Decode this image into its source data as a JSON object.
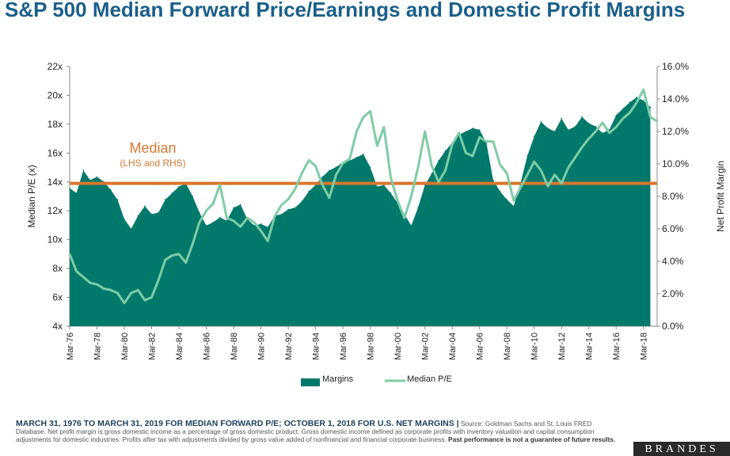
{
  "title": "S&P 500 Median Forward Price/Earnings and Domestic Profit Margins",
  "footer": {
    "lead": "MARCH 31, 1976 TO MARCH 31, 2019 FOR MEDIAN FORWARD P/E; OCTOBER 1, 2018 FOR U.S. NET MARGINS |",
    "source": " Source: Goldman Sachs and St. Louis FRED Database. Net profit margin is gross domestic income as a percentage of gross domestic product. Gross domestic income defined as corporate profits with inventory valuation and capital consumption adjustments for domestic industries: Profits after tax with adjustments divided by gross value added of nonfinancial and financial corporate business. ",
    "disclaimer": "Past performance is not a guarantee of future results."
  },
  "brand": "BRANDES",
  "colors": {
    "margins": "#00796b",
    "pe": "#7fcca5",
    "median": "#d9772f",
    "title": "#1a5f8a"
  },
  "chart_data": {
    "type": "area",
    "y_left": {
      "label": "Median P/E (x)",
      "ylim": [
        4,
        22
      ],
      "ticks": [
        "4x",
        "6x",
        "8x",
        "10x",
        "12x",
        "14x",
        "16x",
        "18x",
        "20x",
        "22x"
      ]
    },
    "y_right": {
      "label": "Net Profit Margin",
      "ylim": [
        0,
        16
      ],
      "ticks": [
        "0.0%",
        "2.0%",
        "4.0%",
        "6.0%",
        "8.0%",
        "10.0%",
        "12.0%",
        "14.0%",
        "16.0%"
      ]
    },
    "x_ticks": [
      "Mar-76",
      "Mar-78",
      "Mar-80",
      "Mar-82",
      "Mar-84",
      "Mar-86",
      "Mar-88",
      "Mar-90",
      "Mar-92",
      "Mar-94",
      "Mar-96",
      "Mar-98",
      "Mar-00",
      "Mar-02",
      "Mar-04",
      "Mar-06",
      "Mar-08",
      "Mar-10",
      "Mar-12",
      "Mar-14",
      "Mar-16",
      "Mar-18"
    ],
    "annotation": {
      "text": "Median",
      "subtext": "(LHS and RHS)",
      "value": 13.9
    },
    "legend": [
      "Margins",
      "Median P/E"
    ],
    "series": [
      {
        "name": "Median P/E",
        "axis": "left",
        "x": [
          1976.25,
          1976.75,
          1977.25,
          1977.75,
          1978.25,
          1978.75,
          1979.25,
          1979.75,
          1980.25,
          1980.75,
          1981.25,
          1981.75,
          1982.25,
          1982.75,
          1983.25,
          1983.75,
          1984.25,
          1984.75,
          1985.25,
          1985.75,
          1986.25,
          1986.75,
          1987.25,
          1987.75,
          1988.25,
          1988.75,
          1989.25,
          1989.75,
          1990.25,
          1990.75,
          1991.25,
          1991.75,
          1992.25,
          1992.75,
          1993.25,
          1993.75,
          1994.25,
          1994.75,
          1995.25,
          1995.75,
          1996.25,
          1996.75,
          1997.25,
          1997.75,
          1998.25,
          1998.75,
          1999.25,
          1999.75,
          2000.25,
          2000.75,
          2001.25,
          2001.75,
          2002.25,
          2002.75,
          2003.25,
          2003.75,
          2004.25,
          2004.75,
          2005.25,
          2005.75,
          2006.25,
          2006.75,
          2007.25,
          2007.75,
          2008.25,
          2008.75,
          2009.25,
          2009.75,
          2010.25,
          2010.75,
          2011.25,
          2011.75,
          2012.25,
          2012.75,
          2013.25,
          2013.75,
          2014.25,
          2014.75,
          2015.25,
          2015.75,
          2016.25,
          2016.75,
          2017.25,
          2017.75,
          2018.25,
          2018.75,
          2019.25
        ],
        "values": [
          9.0,
          7.8,
          7.4,
          7.0,
          6.9,
          6.6,
          6.5,
          6.3,
          5.6,
          6.3,
          6.5,
          5.8,
          6.0,
          7.2,
          8.6,
          8.9,
          9.0,
          8.4,
          9.7,
          11.2,
          12.0,
          12.5,
          13.8,
          11.5,
          11.3,
          10.9,
          11.5,
          11.2,
          10.6,
          9.9,
          11.6,
          12.4,
          12.8,
          13.5,
          14.6,
          15.5,
          15.1,
          13.8,
          12.9,
          14.5,
          15.3,
          15.6,
          17.5,
          18.5,
          18.9,
          16.5,
          17.8,
          14.3,
          12.7,
          11.5,
          13.0,
          15.0,
          17.5,
          15.1,
          14.0,
          14.8,
          16.6,
          17.4,
          16.0,
          15.8,
          17.1,
          16.8,
          16.8,
          15.2,
          14.6,
          12.7,
          13.6,
          14.5,
          15.4,
          14.8,
          13.7,
          14.5,
          13.9,
          15.0,
          15.7,
          16.4,
          17.0,
          17.5,
          18.1,
          17.4,
          17.8,
          18.4,
          18.8,
          19.5,
          20.4,
          18.5,
          18.2
        ]
      },
      {
        "name": "Margins",
        "axis": "right",
        "x": [
          1976.25,
          1976.75,
          1977.25,
          1977.75,
          1978.25,
          1978.75,
          1979.25,
          1979.75,
          1980.25,
          1980.75,
          1981.25,
          1981.75,
          1982.25,
          1982.75,
          1983.25,
          1983.75,
          1984.25,
          1984.75,
          1985.25,
          1985.75,
          1986.25,
          1986.75,
          1987.25,
          1987.75,
          1988.25,
          1988.75,
          1989.25,
          1989.75,
          1990.25,
          1990.75,
          1991.25,
          1991.75,
          1992.25,
          1992.75,
          1993.25,
          1993.75,
          1994.25,
          1994.75,
          1995.25,
          1995.75,
          1996.25,
          1996.75,
          1997.25,
          1997.75,
          1998.25,
          1998.75,
          1999.25,
          1999.75,
          2000.25,
          2000.75,
          2001.25,
          2001.75,
          2002.25,
          2002.75,
          2003.25,
          2003.75,
          2004.25,
          2004.75,
          2005.25,
          2005.75,
          2006.25,
          2006.75,
          2007.25,
          2007.75,
          2008.25,
          2008.75,
          2009.25,
          2009.75,
          2010.25,
          2010.75,
          2011.25,
          2011.75,
          2012.25,
          2012.75,
          2013.25,
          2013.75,
          2014.25,
          2014.75,
          2015.25,
          2015.75,
          2016.25,
          2016.75,
          2017.25,
          2017.75,
          2018.25,
          2018.75
        ],
        "values": [
          8.5,
          8.2,
          9.6,
          9.0,
          9.2,
          8.9,
          8.4,
          7.8,
          6.6,
          6.0,
          6.8,
          7.4,
          6.9,
          7.0,
          7.8,
          8.2,
          8.6,
          8.8,
          8.0,
          7.0,
          6.2,
          6.4,
          6.7,
          6.5,
          7.3,
          7.5,
          6.6,
          6.2,
          6.3,
          6.1,
          6.8,
          6.9,
          7.2,
          7.3,
          7.7,
          8.3,
          8.7,
          9.2,
          9.6,
          9.8,
          10.1,
          10.2,
          10.4,
          10.6,
          9.8,
          8.6,
          8.7,
          8.2,
          7.6,
          6.9,
          6.2,
          7.3,
          8.7,
          9.4,
          10.2,
          10.8,
          11.3,
          11.8,
          12.0,
          12.2,
          12.1,
          11.3,
          9.0,
          8.3,
          7.8,
          7.4,
          8.8,
          10.5,
          11.7,
          12.6,
          12.2,
          12.0,
          12.8,
          12.1,
          12.3,
          12.9,
          12.5,
          12.3,
          11.9,
          12.1,
          13.0,
          13.4,
          13.8,
          14.1,
          13.9,
          13.5
        ]
      }
    ]
  }
}
